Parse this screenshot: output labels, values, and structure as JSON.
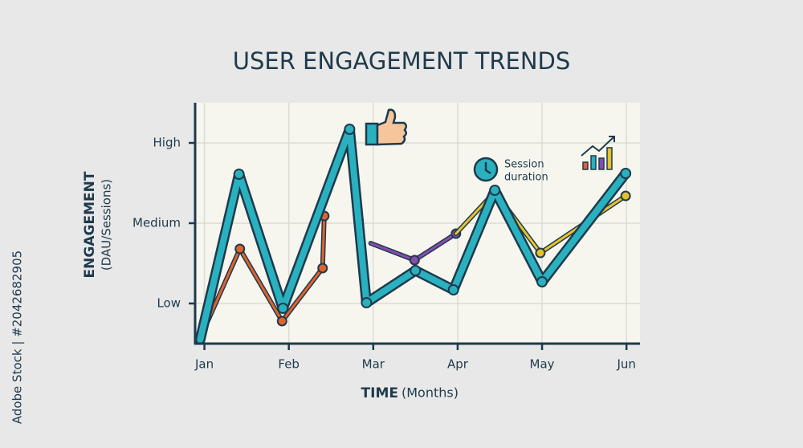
{
  "chart_data": {
    "type": "line",
    "title": "USER ENGAGEMENT TRENDS",
    "y_label": "ENGAGEMENT",
    "y_label_sub": "(DAU/Sessions)",
    "x_label": "TIME",
    "x_label_sub": "(Months)",
    "annotation": [
      "Session",
      "duration"
    ],
    "source": "Adobe Stock | #2042682905",
    "xlim": [
      -0.11,
      5.16
    ],
    "ylim": [
      0.5,
      3.5
    ],
    "xticks": [
      {
        "value": 0,
        "label": "Jan"
      },
      {
        "value": 1,
        "label": "Feb"
      },
      {
        "value": 2,
        "label": "Mar"
      },
      {
        "value": 3,
        "label": "Apr"
      },
      {
        "value": 4,
        "label": "May"
      },
      {
        "value": 5,
        "label": "Jun"
      }
    ],
    "yticks": [
      {
        "value": 1,
        "label": "Low"
      },
      {
        "value": 2,
        "label": "Medium"
      },
      {
        "value": 3,
        "label": "High"
      }
    ],
    "grid": true,
    "series": [
      {
        "color": "#e0622e",
        "x": [
          -0.02,
          0.42,
          0.92,
          1.4,
          1.42
        ],
        "values": [
          0.64,
          1.68,
          0.78,
          1.44,
          2.09
        ]
      },
      {
        "color": "#8a4bb0",
        "x": [
          1.97,
          2.49,
          2.98
        ],
        "values": [
          1.75,
          1.54,
          1.87
        ]
      },
      {
        "color": "#e7c12c",
        "x": [
          2.98,
          3.44,
          3.98,
          4.99
        ],
        "values": [
          1.87,
          2.39,
          1.63,
          2.34
        ]
      },
      {
        "color": "#2ab1bf",
        "x": [
          -0.05,
          0.41,
          0.93,
          1.72,
          1.92,
          2.5,
          2.95,
          3.44,
          4.0,
          4.99
        ],
        "values": [
          0.55,
          2.61,
          0.94,
          3.17,
          1.01,
          1.41,
          1.17,
          2.41,
          1.27,
          2.62
        ]
      }
    ]
  }
}
